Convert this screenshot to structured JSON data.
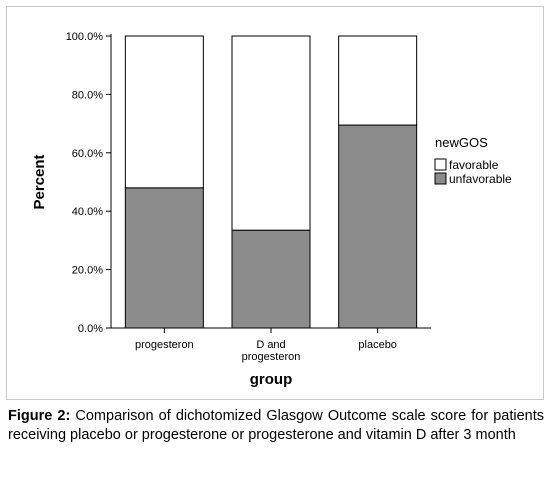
{
  "chart_data": {
    "type": "bar",
    "stacked": true,
    "categories": [
      "progesteron",
      "D and progesteron",
      "placebo"
    ],
    "category_display": [
      [
        "progesteron"
      ],
      [
        "D and",
        "progesteron"
      ],
      [
        "placebo"
      ]
    ],
    "series": [
      {
        "name": "unfavorable",
        "values": [
          48.0,
          33.5,
          69.5
        ],
        "color": "#8c8c8c"
      },
      {
        "name": "favorable",
        "values": [
          52.0,
          66.5,
          30.5
        ],
        "color": "#ffffff"
      }
    ],
    "xlabel": "group",
    "ylabel": "Percent",
    "ylim": [
      0,
      100
    ],
    "yticks": [
      "0.0%",
      "20.0%",
      "40.0%",
      "60.0%",
      "80.0%",
      "100.0%"
    ],
    "ytick_values": [
      0,
      20,
      40,
      60,
      80,
      100
    ],
    "legend": {
      "title": "newGOS",
      "entries": [
        "favorable",
        "unfavorable"
      ],
      "placement": "right"
    },
    "grid": false
  },
  "caption": {
    "label": "Figure 2:",
    "text": "Comparison of dichotomized Glasgow Outcome scale score for patients receiving placebo or progesterone or progesterone and vitamin D after 3 month"
  }
}
